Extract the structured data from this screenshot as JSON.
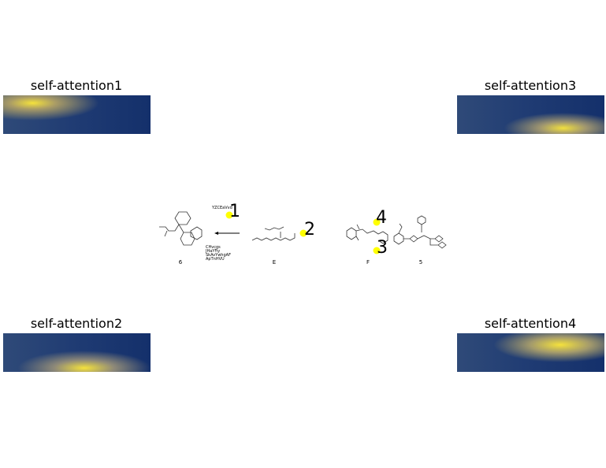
{
  "panels": [
    {
      "title": "self-attention1"
    },
    {
      "title": "self-attention3"
    },
    {
      "title": "self-attention2"
    },
    {
      "title": "self-attention4"
    }
  ],
  "reaction": {
    "reagent": "YZCEaVvd",
    "conditions": [
      "CHvcgs",
      "JHaYFiy",
      "SkAvYwhgAF",
      "ApTnHVU"
    ],
    "compounds": [
      "6",
      "E",
      "F",
      "5"
    ]
  },
  "markers": [
    "1",
    "2",
    "3",
    "4"
  ]
}
